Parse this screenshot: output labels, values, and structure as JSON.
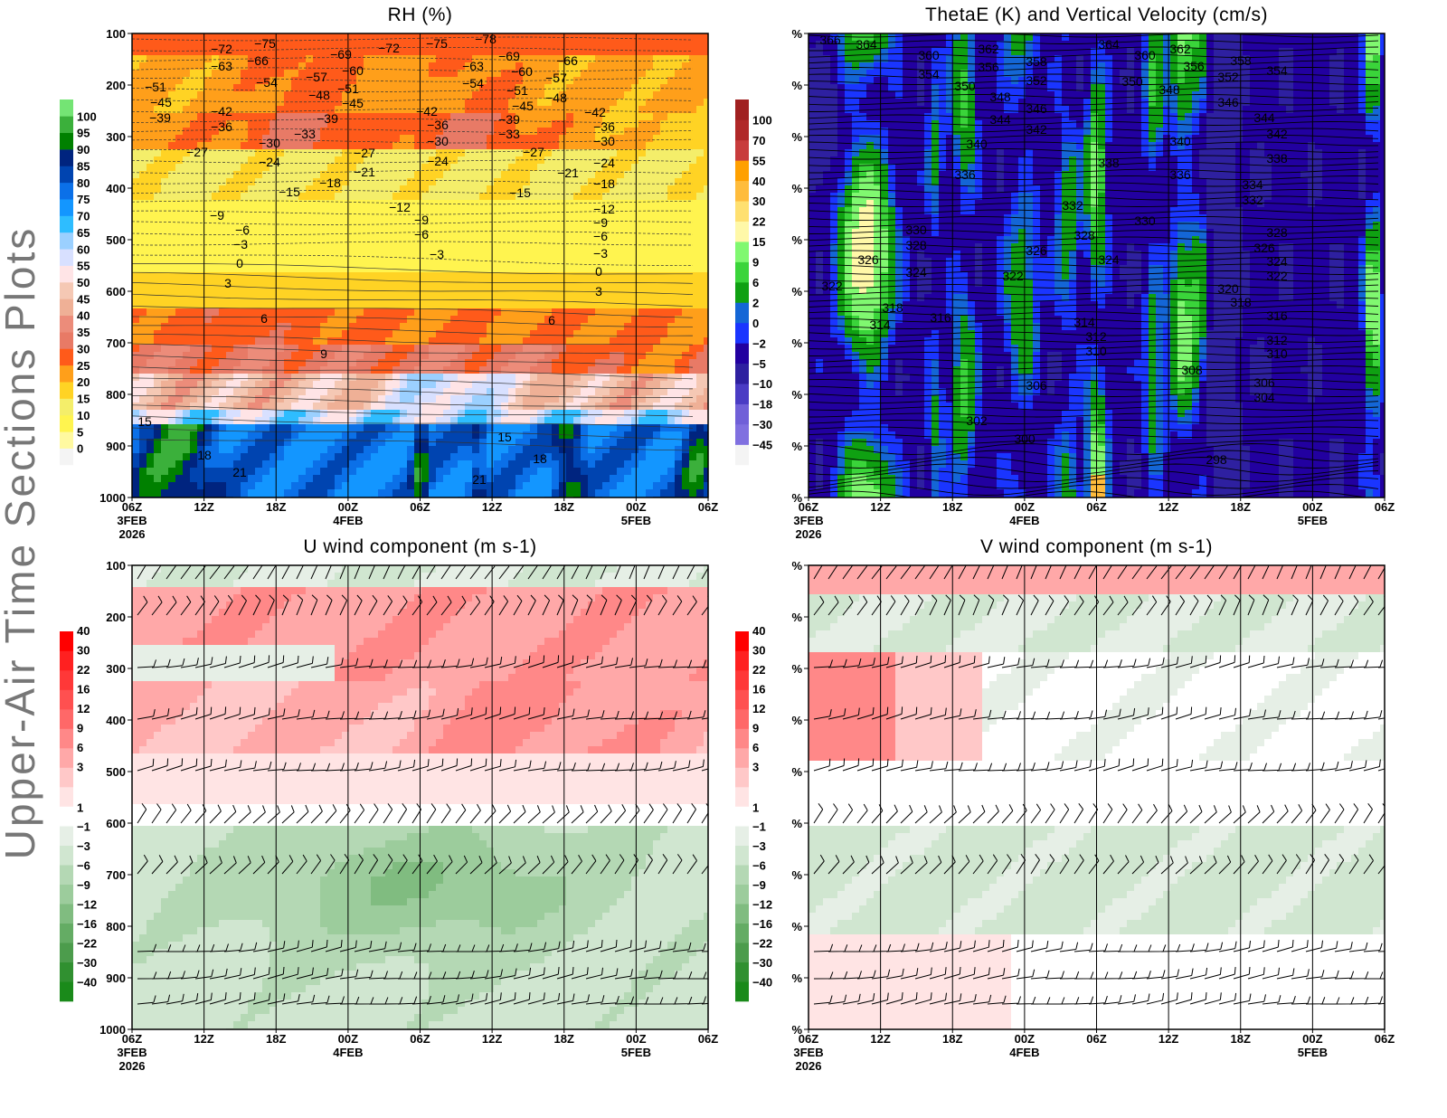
{
  "page_title": "Upper-Air Time Sections Plots",
  "chart_data": [
    {
      "type": "heatmap",
      "title": "RH (%)",
      "yticks": [
        "100",
        "200",
        "300",
        "400",
        "500",
        "600",
        "700",
        "800",
        "900",
        "1000"
      ],
      "ylim": [
        1000,
        100
      ],
      "y_scale": "pressure (inverted)",
      "xticks": [
        "06Z",
        "12Z",
        "18Z",
        "00Z",
        "06Z",
        "12Z",
        "18Z",
        "00Z",
        "06Z"
      ],
      "xdates": [
        {
          "tick": 0,
          "label": "3FEB"
        },
        {
          "tick": 3,
          "label": "4FEB"
        },
        {
          "tick": 7,
          "label": "5FEB"
        }
      ],
      "xyear": "2026",
      "colorbar": {
        "labels": [
          "0",
          "5",
          "10",
          "15",
          "20",
          "25",
          "30",
          "35",
          "40",
          "45",
          "50",
          "55",
          "60",
          "65",
          "70",
          "75",
          "80",
          "85",
          "90",
          "95",
          "100"
        ],
        "colors": [
          "#f4f4f4",
          "#fff9a0",
          "#fff44f",
          "#f4ee6a",
          "#ffd324",
          "#ff9f1a",
          "#ff5a1a",
          "#e87a66",
          "#ec8c7a",
          "#efb096",
          "#f5c8b4",
          "#ffe4e6",
          "#d8e0ff",
          "#9bd0ff",
          "#2ebdff",
          "#1396ff",
          "#0b70e8",
          "#0044b0",
          "#00247f",
          "#008000",
          "#3bb03b",
          "#74e474"
        ]
      },
      "overlay": "temperature contours (°C)",
      "contour_labels": [
        "-72",
        "-75",
        "-69",
        "-72",
        "-75",
        "-78",
        "-69",
        "-66",
        "-63",
        "-66",
        "-60",
        "-63",
        "-60",
        "-57",
        "-51",
        "-54",
        "-57",
        "-51",
        "-54",
        "-51",
        "-48",
        "-45",
        "-48",
        "-45",
        "-45",
        "-39",
        "-42",
        "-39",
        "-42",
        "-42",
        "-39",
        "-36",
        "-36",
        "-36",
        "-33",
        "-33",
        "-30",
        "-30",
        "-30",
        "-27",
        "-27",
        "-27",
        "-24",
        "-24",
        "-24",
        "-21",
        "-21",
        "-18",
        "-18",
        "-15",
        "-15",
        "-12",
        "-12",
        "-9",
        "-9",
        "-9",
        "-6",
        "-6",
        "-6",
        "-3",
        "-3",
        "-3",
        "0",
        "0",
        "3",
        "3",
        "6",
        "6",
        "9",
        "15",
        "15",
        "18",
        "18",
        "21",
        "21"
      ]
    },
    {
      "type": "heatmap",
      "title": "ThetaE (K) and Vertical Velocity (cm/s)",
      "ytick_label": "%",
      "xticks": [
        "06Z",
        "12Z",
        "18Z",
        "00Z",
        "06Z",
        "12Z",
        "18Z",
        "00Z",
        "06Z"
      ],
      "xdates": [
        {
          "tick": 0,
          "label": "3FEB"
        },
        {
          "tick": 3,
          "label": "4FEB"
        },
        {
          "tick": 7,
          "label": "5FEB"
        }
      ],
      "xyear": "2026",
      "colorbar": {
        "labels": [
          "-45",
          "-30",
          "-18",
          "-10",
          "-5",
          "-2",
          "0",
          "2",
          "6",
          "9",
          "15",
          "22",
          "30",
          "40",
          "55",
          "70",
          "100"
        ],
        "colors": [
          "#f4f4f4",
          "#8070e0",
          "#7060d8",
          "#4a3cc4",
          "#2e20a0",
          "#2200a0",
          "#1a35ff",
          "#1466d6",
          "#0fa012",
          "#3ad43a",
          "#80f870",
          "#fff8a8",
          "#ffe070",
          "#ffbc3c",
          "#ffa000",
          "#c83c3c",
          "#b02828",
          "#a02020"
        ]
      },
      "overlay": "ThetaE contours (K)",
      "contour_labels": [
        "366",
        "364",
        "360",
        "362",
        "364",
        "360",
        "362",
        "358",
        "358",
        "356",
        "356",
        "354",
        "352",
        "352",
        "354",
        "350",
        "350",
        "348",
        "348",
        "346",
        "346",
        "344",
        "344",
        "342",
        "342",
        "340",
        "340",
        "338",
        "338",
        "336",
        "336",
        "334",
        "332",
        "332",
        "330",
        "330",
        "328",
        "328",
        "328",
        "326",
        "326",
        "326",
        "324",
        "324",
        "324",
        "322",
        "322",
        "322",
        "320",
        "318",
        "318",
        "316",
        "316",
        "314",
        "314",
        "312",
        "312",
        "310",
        "310",
        "308",
        "306",
        "306",
        "304",
        "302",
        "300",
        "298"
      ]
    },
    {
      "type": "heatmap",
      "title": "U wind component (m s-1)",
      "yticks": [
        "100",
        "200",
        "300",
        "400",
        "500",
        "600",
        "700",
        "800",
        "900",
        "1000"
      ],
      "ylim": [
        1000,
        100
      ],
      "xticks": [
        "06Z",
        "12Z",
        "18Z",
        "00Z",
        "06Z",
        "12Z",
        "18Z",
        "00Z",
        "06Z"
      ],
      "xdates": [
        {
          "tick": 0,
          "label": "3FEB"
        },
        {
          "tick": 3,
          "label": "4FEB"
        },
        {
          "tick": 7,
          "label": "5FEB"
        }
      ],
      "xyear": "2026",
      "colorbar": {
        "labels_pos": [
          "1",
          "3",
          "6",
          "9",
          "12",
          "16",
          "22",
          "30",
          "40"
        ],
        "colors_pos": [
          "#ffe4e4",
          "#ffc8c8",
          "#ffa8a8",
          "#ff8888",
          "#ff6868",
          "#ff5050",
          "#ff3838",
          "#ff2020",
          "#ff0000"
        ],
        "labels_neg": [
          "-1",
          "-3",
          "-6",
          "-9",
          "-12",
          "-16",
          "-22",
          "-30",
          "-40"
        ],
        "colors_neg": [
          "#e6efe6",
          "#d0e6d0",
          "#b4d8b4",
          "#9ccc9c",
          "#80bc80",
          "#64ac64",
          "#4c9c4c",
          "#309030",
          "#1a8a1a"
        ]
      },
      "overlay": "wind barbs"
    },
    {
      "type": "heatmap",
      "title": "V wind component (m s-1)",
      "ytick_label": "%",
      "xticks": [
        "06Z",
        "12Z",
        "18Z",
        "00Z",
        "06Z",
        "12Z",
        "18Z",
        "00Z",
        "06Z"
      ],
      "xdates": [
        {
          "tick": 0,
          "label": "3FEB"
        },
        {
          "tick": 3,
          "label": "4FEB"
        },
        {
          "tick": 7,
          "label": "5FEB"
        }
      ],
      "xyear": "2026",
      "colorbar": {
        "labels_pos": [
          "1",
          "3",
          "6",
          "9",
          "12",
          "16",
          "22",
          "30",
          "40"
        ],
        "colors_pos": [
          "#ffe4e4",
          "#ffc8c8",
          "#ffa8a8",
          "#ff8888",
          "#ff6868",
          "#ff5050",
          "#ff3838",
          "#ff2020",
          "#ff0000"
        ],
        "labels_neg": [
          "-1",
          "-3",
          "-6",
          "-9",
          "-12",
          "-16",
          "-22",
          "-30",
          "-40"
        ],
        "colors_neg": [
          "#e6efe6",
          "#d0e6d0",
          "#b4d8b4",
          "#9ccc9c",
          "#80bc80",
          "#64ac64",
          "#4c9c4c",
          "#309030",
          "#1a8a1a"
        ]
      },
      "overlay": "wind barbs"
    }
  ]
}
